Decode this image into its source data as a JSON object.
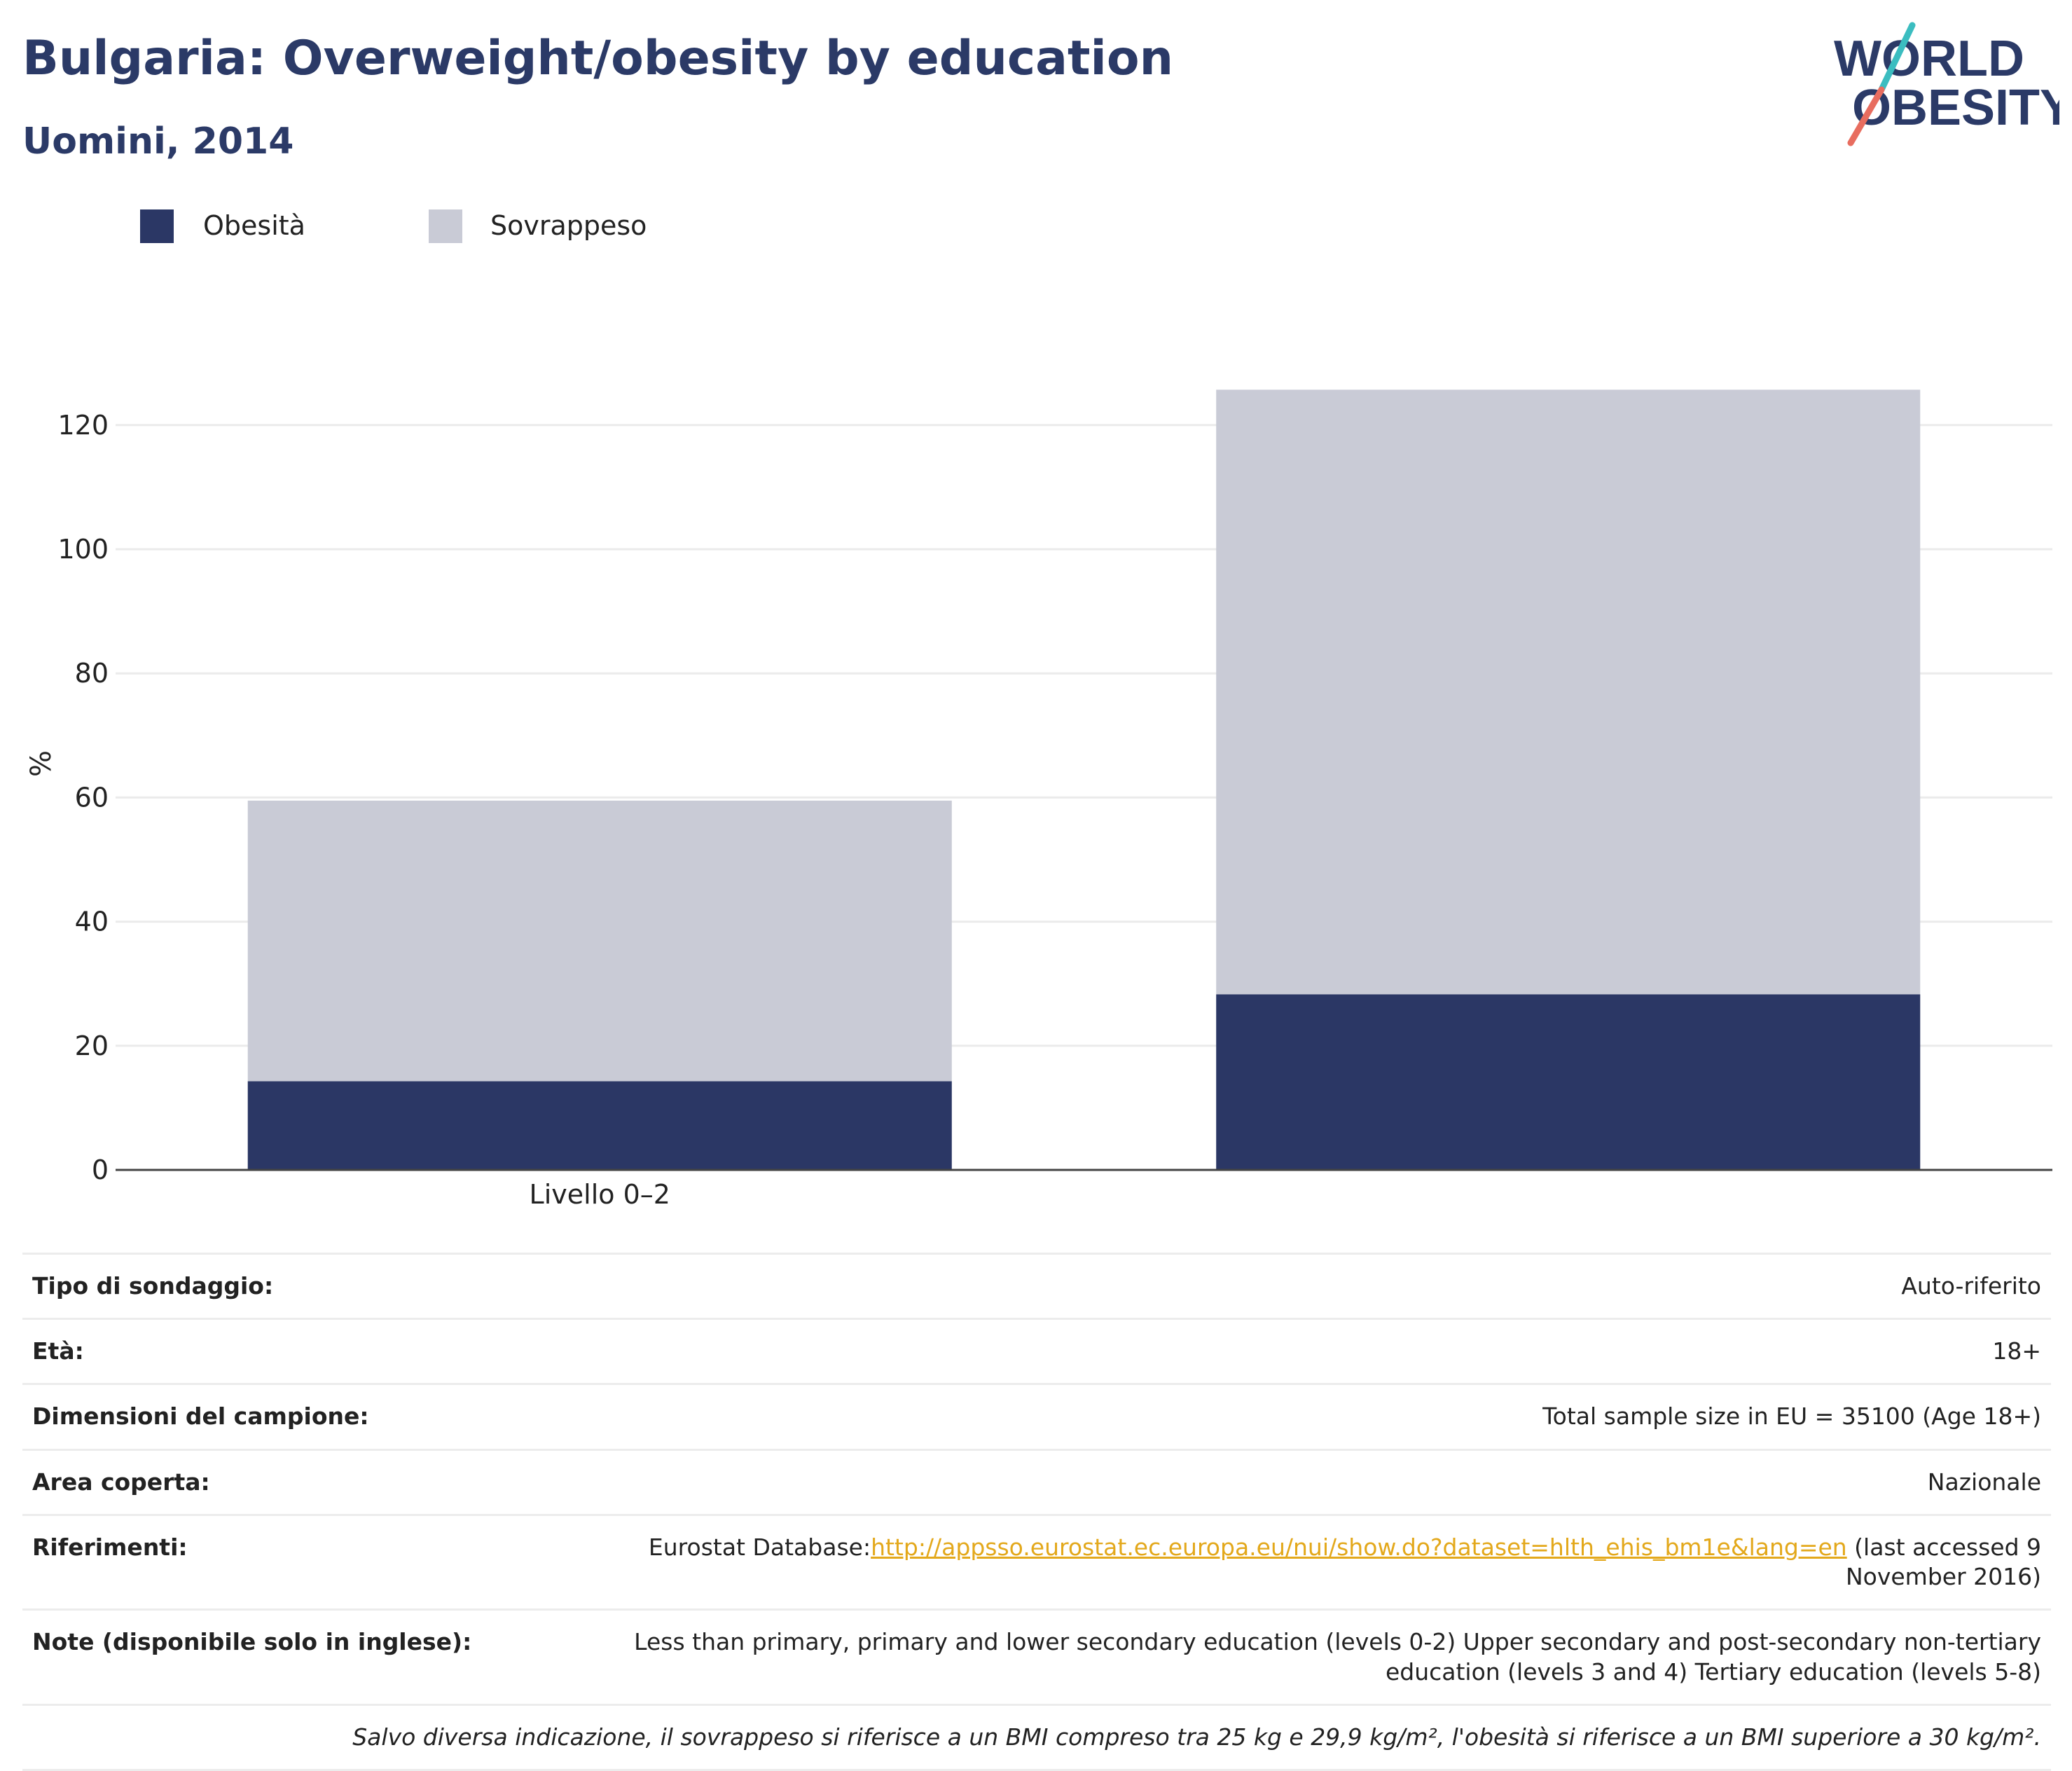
{
  "header": {
    "title": "Bulgaria: Overweight/obesity by education",
    "subtitle": "Uomini, 2014",
    "logo_text_top": "WORLD",
    "logo_text_bottom": "OBESITY"
  },
  "colors": {
    "obesity": "#2b3765",
    "overweight": "#c9cbd6",
    "title": "#2b3a67",
    "link": "#e3a81b",
    "logo_teal": "#3bbdc0",
    "logo_coral": "#e86d5f"
  },
  "chart_data": {
    "type": "bar",
    "stacked": true,
    "categories": [
      "Livello 0–2",
      ""
    ],
    "series": [
      {
        "name": "Obesità",
        "values": [
          14.3,
          28.3
        ]
      },
      {
        "name": "Sovrappeso",
        "values": [
          45.2,
          97.4
        ]
      }
    ],
    "xlabel": "",
    "ylabel": "%",
    "ylim": [
      0,
      130
    ],
    "yticks": [
      0,
      20,
      40,
      60,
      80,
      100,
      120
    ],
    "grid": true,
    "legend": "top-left"
  },
  "info": {
    "rows": [
      {
        "label": "Tipo di sondaggio:",
        "value": "Auto-riferito"
      },
      {
        "label": "Età:",
        "value": "18+"
      },
      {
        "label": "Dimensioni del campione:",
        "value": "Total sample size in EU = 35100 (Age 18+)"
      },
      {
        "label": "Area coperta:",
        "value": "Nazionale"
      }
    ],
    "references": {
      "label": "Riferimenti:",
      "prefix": "Eurostat Database:",
      "link": "http://appsso.eurostat.ec.europa.eu/nui/show.do?dataset=hlth_ehis_bm1e&lang=en",
      "suffix": " (last accessed 9 November 2016)"
    },
    "notes": {
      "label": "Note (disponibile solo in inglese):",
      "value": "Less than primary, primary and lower secondary education (levels 0-2) Upper secondary and post-secondary non-tertiary education (levels 3 and 4) Tertiary education (levels 5-8)"
    },
    "footnote": "Salvo diversa indicazione, il sovrappeso si riferisce a un BMI compreso tra 25 kg e 29,9 kg/m², l'obesità si riferisce a un BMI superiore a 30 kg/m²."
  }
}
